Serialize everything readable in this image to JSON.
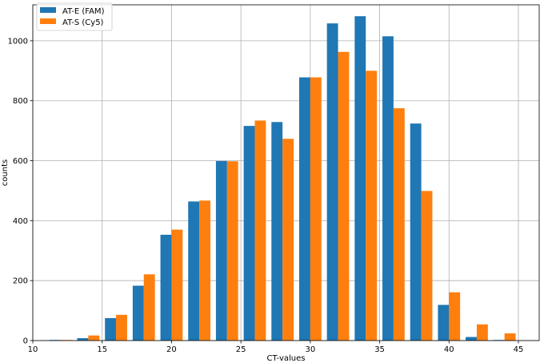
{
  "chart_data": {
    "type": "bar",
    "title": "",
    "xlabel": "CT-values",
    "ylabel": "counts",
    "xlim": [
      10,
      46.5
    ],
    "ylim": [
      0,
      1120
    ],
    "xticks": [
      10,
      15,
      20,
      25,
      30,
      35,
      40,
      45
    ],
    "yticks": [
      0,
      200,
      400,
      600,
      800,
      1000
    ],
    "grid": true,
    "legend_position": "top-left",
    "bin_edges": [
      11,
      13,
      15,
      17,
      19,
      21,
      23,
      25,
      27,
      29,
      31,
      33,
      35,
      37,
      39,
      41,
      43,
      45
    ],
    "series": [
      {
        "name": "AT-E (FAM)",
        "color": "#1f77b4",
        "values": [
          2,
          8,
          75,
          183,
          353,
          464,
          599,
          716,
          729,
          878,
          1058,
          1082,
          1015,
          724,
          119,
          12,
          2
        ]
      },
      {
        "name": "AT-S (Cy5)",
        "color": "#ff7f0e",
        "values": [
          2,
          17,
          86,
          221,
          370,
          467,
          598,
          734,
          673,
          878,
          963,
          900,
          775,
          499,
          161,
          54,
          24
        ]
      }
    ]
  }
}
